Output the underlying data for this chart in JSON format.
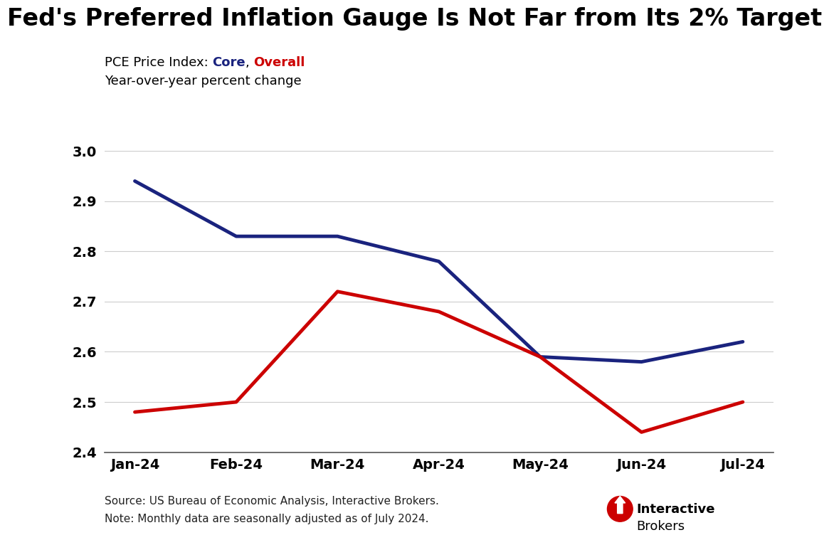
{
  "title": "Fed's Preferred Inflation Gauge Is Not Far from Its 2% Target",
  "subtitle_prefix": "PCE Price Index: ",
  "subtitle_core": "Core",
  "subtitle_sep": ", ",
  "subtitle_overall": "Overall",
  "ylabel": "Year-over-year percent change",
  "categories": [
    "Jan-24",
    "Feb-24",
    "Mar-24",
    "Apr-24",
    "May-24",
    "Jun-24",
    "Jul-24"
  ],
  "core_values": [
    2.94,
    2.83,
    2.83,
    2.78,
    2.59,
    2.58,
    2.62
  ],
  "overall_values": [
    2.48,
    2.5,
    2.72,
    2.68,
    2.59,
    2.44,
    2.5
  ],
  "core_color": "#1a237e",
  "overall_color": "#cc0000",
  "background_color": "#ffffff",
  "ylim_min": 2.4,
  "ylim_max": 3.0,
  "yticks": [
    2.4,
    2.5,
    2.6,
    2.7,
    2.8,
    2.9,
    3.0
  ],
  "line_width": 3.5,
  "source_text": "Source: US Bureau of Economic Analysis, Interactive Brokers.",
  "note_text": "Note: Monthly data are seasonally adjusted as of July 2024.",
  "title_fontsize": 24,
  "tick_fontsize": 14,
  "subtitle_fontsize": 13,
  "source_fontsize": 11,
  "ib_bold": "Interactive",
  "ib_normal": "Brokers"
}
